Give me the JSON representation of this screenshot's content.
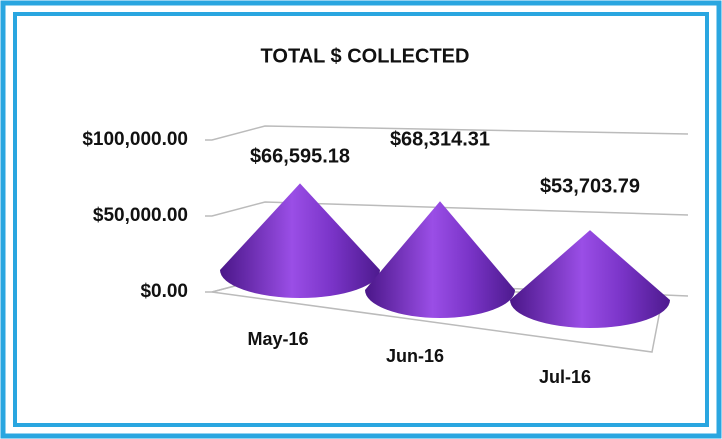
{
  "chart_data": {
    "type": "cone",
    "title": "TOTAL $ COLLECTED",
    "categories": [
      "May-16",
      "Jun-16",
      "Jul-16"
    ],
    "values": [
      66595.18,
      68314.31,
      53703.79
    ],
    "value_labels": [
      "$66,595.18",
      "$68,314.31",
      "$53,703.79"
    ],
    "color": "#8a3fd0",
    "ylim": [
      0,
      100000
    ],
    "yticks": [
      {
        "value": 0,
        "label": "$0.00"
      },
      {
        "value": 50000,
        "label": "$50,000.00"
      },
      {
        "value": 100000,
        "label": "$100,000.00"
      }
    ],
    "grid": true
  }
}
